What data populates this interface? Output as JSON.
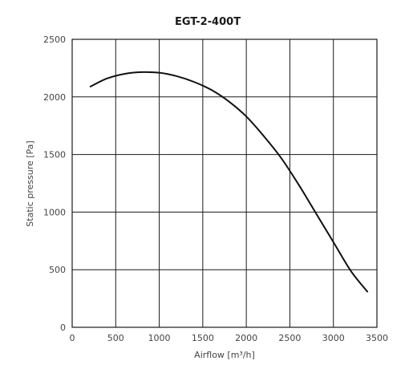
{
  "chart_data": {
    "type": "line",
    "title": "EGT-2-400T",
    "xlabel": "Airflow [m³/h]",
    "ylabel": "Static pressure [Pa]",
    "xlim": [
      0,
      3500
    ],
    "ylim": [
      0,
      2500
    ],
    "xticks": [
      0,
      500,
      1000,
      1500,
      2000,
      2500,
      3000,
      3500
    ],
    "yticks": [
      0,
      500,
      1000,
      1500,
      2000,
      2500
    ],
    "grid": true,
    "series": [
      {
        "x": [
          210,
          400,
          600,
          800,
          1000,
          1200,
          1400,
          1600,
          1800,
          2000,
          2200,
          2400,
          2600,
          2800,
          3000,
          3200,
          3390
        ],
        "y": [
          2090,
          2160,
          2200,
          2215,
          2210,
          2180,
          2130,
          2060,
          1960,
          1830,
          1660,
          1470,
          1240,
          990,
          740,
          490,
          310
        ]
      }
    ],
    "colors": {
      "line": "#111111",
      "grid": "#1a1a1a",
      "text": "#444444"
    }
  }
}
